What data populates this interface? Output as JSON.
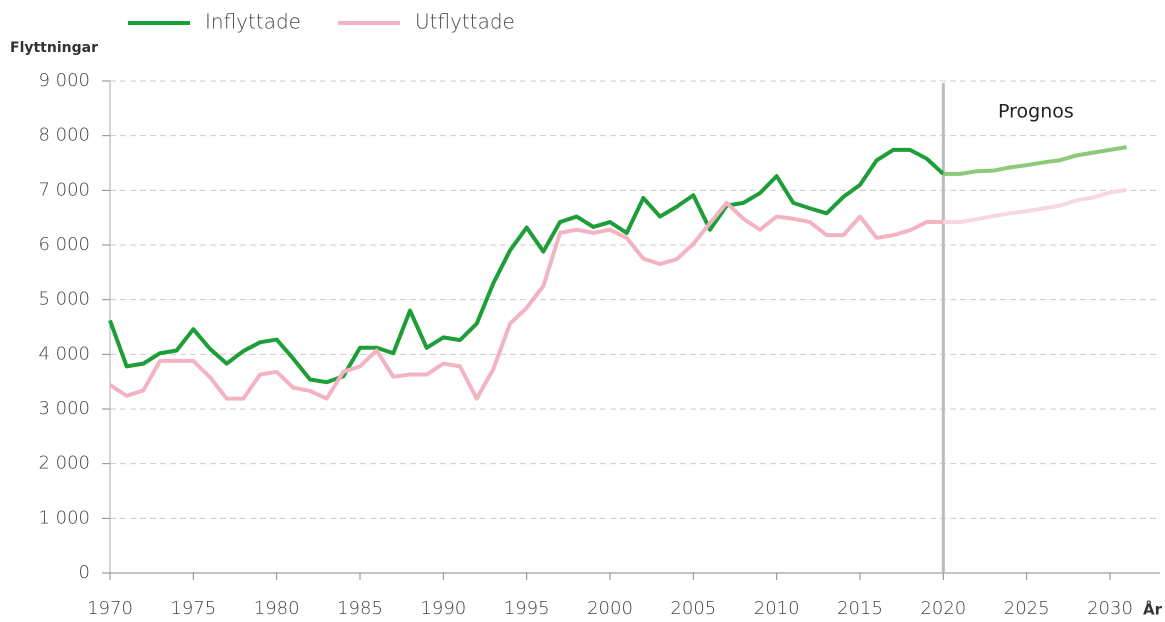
{
  "chart_data": {
    "type": "line",
    "y_label": "Flyttningar",
    "x_label": "År",
    "annotation": "Prognos",
    "x": [
      1970,
      1971,
      1972,
      1973,
      1974,
      1975,
      1976,
      1977,
      1978,
      1979,
      1980,
      1981,
      1982,
      1983,
      1984,
      1985,
      1986,
      1987,
      1988,
      1989,
      1990,
      1991,
      1992,
      1993,
      1994,
      1995,
      1996,
      1997,
      1998,
      1999,
      2000,
      2001,
      2002,
      2003,
      2004,
      2005,
      2006,
      2007,
      2008,
      2009,
      2010,
      2011,
      2012,
      2013,
      2014,
      2015,
      2016,
      2017,
      2018,
      2019,
      2020,
      2021,
      2022,
      2023,
      2024,
      2025,
      2026,
      2027,
      2028,
      2029,
      2030,
      2031
    ],
    "forecast_from": 2020,
    "forecast_line_color": "#bbbbbb",
    "series": [
      {
        "name": "Inflyttade",
        "color": "#1e9e38",
        "forecast_color": "#8cc97a",
        "values": [
          4620,
          3780,
          3830,
          4020,
          4070,
          4460,
          4100,
          3830,
          4060,
          4220,
          4270,
          3920,
          3540,
          3490,
          3600,
          4120,
          4120,
          4020,
          4800,
          4120,
          4310,
          4260,
          4560,
          5300,
          5900,
          6320,
          5880,
          6420,
          6520,
          6330,
          6420,
          6220,
          6860,
          6520,
          6700,
          6910,
          6280,
          6720,
          6770,
          6950,
          7260,
          6770,
          6670,
          6580,
          6880,
          7100,
          7550,
          7740,
          7740,
          7580,
          7300,
          7300,
          7350,
          7360,
          7420,
          7460,
          7510,
          7550,
          7640,
          7690,
          7740,
          7790
        ]
      },
      {
        "name": "Utflyttade",
        "color": "#f3b3c3",
        "forecast_color": "#f8d8e0",
        "values": [
          3440,
          3240,
          3340,
          3880,
          3880,
          3880,
          3580,
          3190,
          3190,
          3630,
          3680,
          3390,
          3330,
          3190,
          3680,
          3780,
          4070,
          3590,
          3630,
          3630,
          3830,
          3780,
          3190,
          3730,
          4560,
          4850,
          5250,
          6220,
          6280,
          6220,
          6280,
          6130,
          5750,
          5650,
          5740,
          6020,
          6400,
          6770,
          6480,
          6280,
          6520,
          6480,
          6420,
          6180,
          6180,
          6520,
          6130,
          6180,
          6270,
          6420,
          6420,
          6420,
          6470,
          6530,
          6580,
          6620,
          6670,
          6720,
          6820,
          6870,
          6960,
          7010
        ]
      }
    ],
    "xlim": [
      1970,
      2033
    ],
    "xticks": [
      1970,
      1975,
      1980,
      1985,
      1990,
      1995,
      2000,
      2005,
      2010,
      2015,
      2020,
      2025,
      2030
    ],
    "ylim": [
      0,
      9000
    ],
    "yticks": [
      0,
      {
        "value": 1000,
        "label": "1 000"
      },
      {
        "value": 2000,
        "label": "2 000"
      },
      {
        "value": 3000,
        "label": "3 000"
      },
      {
        "value": 4000,
        "label": "4 000"
      },
      {
        "value": 5000,
        "label": "5 000"
      },
      {
        "value": 6000,
        "label": "6 000"
      },
      {
        "value": 7000,
        "label": "7 000"
      },
      {
        "value": 8000,
        "label": "8 000"
      },
      {
        "value": 9000,
        "label": "9 000"
      }
    ],
    "grid": true,
    "legend": "top"
  }
}
